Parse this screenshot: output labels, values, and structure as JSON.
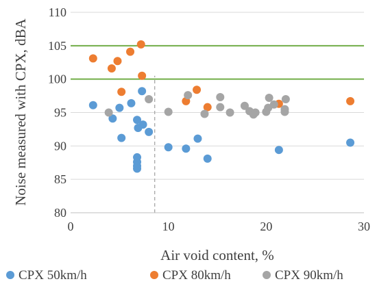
{
  "chart_data": {
    "type": "scatter",
    "title": "",
    "xlabel": "Air void content, %",
    "ylabel": "Noise measured with CPX, dBA",
    "xlim": [
      0,
      30
    ],
    "ylim": [
      80,
      110
    ],
    "x_ticks": [
      "0",
      "10",
      "20",
      "30"
    ],
    "y_ticks": [
      "80",
      "85",
      "90",
      "95",
      "100",
      "105",
      "110"
    ],
    "grid": "horizontal",
    "legend_position": "bottom",
    "reference_lines": {
      "horizontal": [
        {
          "y": 105,
          "color": "#70ad47",
          "style": "solid"
        },
        {
          "y": 100,
          "color": "#70ad47",
          "style": "solid"
        }
      ],
      "vertical": [
        {
          "x": 8.6,
          "y_from": 80,
          "y_to": 100.5,
          "color": "#a6a6a6",
          "style": "dashed"
        }
      ]
    },
    "series": [
      {
        "name": "CPX 50km/h",
        "color": "#5b9bd5",
        "points": [
          [
            2.3,
            96.1
          ],
          [
            4.3,
            94.1
          ],
          [
            5.0,
            95.7
          ],
          [
            5.2,
            91.2
          ],
          [
            6.2,
            96.4
          ],
          [
            6.8,
            93.9
          ],
          [
            6.9,
            92.7
          ],
          [
            7.3,
            98.2
          ],
          [
            7.4,
            93.2
          ],
          [
            8.0,
            92.1
          ],
          [
            6.8,
            88.3
          ],
          [
            6.8,
            87.6
          ],
          [
            6.8,
            87.0
          ],
          [
            6.8,
            86.6
          ],
          [
            10.0,
            89.8
          ],
          [
            11.8,
            89.6
          ],
          [
            13.0,
            91.1
          ],
          [
            14.0,
            88.1
          ],
          [
            21.3,
            89.4
          ],
          [
            28.6,
            90.5
          ]
        ]
      },
      {
        "name": "CPX 80km/h",
        "color": "#ed7d31",
        "points": [
          [
            2.3,
            103.1
          ],
          [
            4.2,
            101.6
          ],
          [
            4.8,
            102.7
          ],
          [
            5.2,
            98.1
          ],
          [
            6.1,
            104.1
          ],
          [
            7.2,
            105.2
          ],
          [
            7.3,
            100.5
          ],
          [
            11.8,
            96.7
          ],
          [
            12.9,
            98.4
          ],
          [
            14.0,
            95.8
          ],
          [
            21.3,
            96.3
          ],
          [
            28.6,
            96.7
          ]
        ]
      },
      {
        "name": "CPX 90km/h",
        "color": "#a5a5a5",
        "points": [
          [
            3.9,
            95.0
          ],
          [
            8.0,
            97.0
          ],
          [
            10.0,
            95.1
          ],
          [
            12.0,
            97.6
          ],
          [
            13.7,
            94.8
          ],
          [
            15.3,
            95.8
          ],
          [
            15.3,
            97.3
          ],
          [
            16.3,
            95.0
          ],
          [
            17.8,
            96.0
          ],
          [
            18.3,
            95.2
          ],
          [
            18.9,
            95.0
          ],
          [
            18.7,
            94.7
          ],
          [
            20.0,
            95.1
          ],
          [
            20.2,
            95.7
          ],
          [
            20.3,
            97.2
          ],
          [
            20.8,
            96.2
          ],
          [
            21.9,
            95.5
          ],
          [
            22.0,
            97.0
          ],
          [
            21.9,
            95.1
          ]
        ]
      }
    ]
  }
}
